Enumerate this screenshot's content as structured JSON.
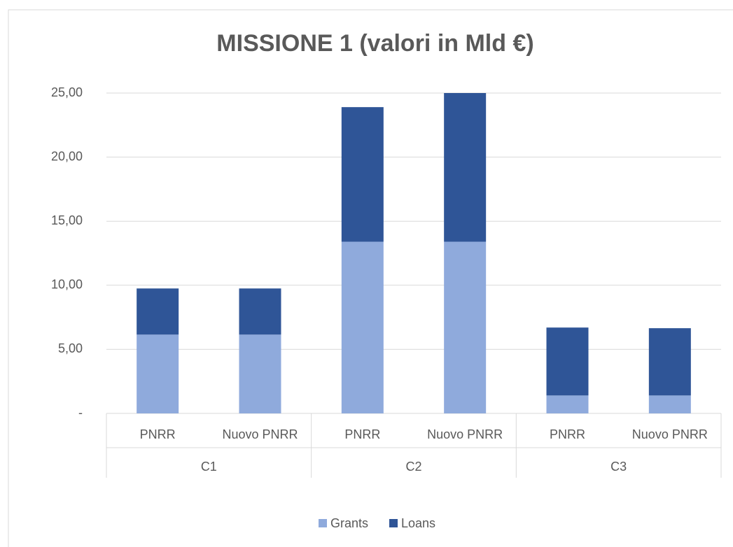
{
  "chart_data": {
    "type": "stacked_bar",
    "title": "MISSIONE 1 (valori in Mld €)",
    "categories": [
      "PNRR",
      "Nuovo PNRR",
      "PNRR",
      "Nuovo PNRR",
      "PNRR",
      "Nuovo PNRR"
    ],
    "groups": [
      "C1",
      "C2",
      "C3"
    ],
    "series": [
      {
        "name": "Grants",
        "color": "#8faadc",
        "values": [
          6.15,
          6.15,
          13.4,
          13.4,
          1.4,
          1.4
        ]
      },
      {
        "name": "Loans",
        "color": "#2f5597",
        "values": [
          3.6,
          3.6,
          10.5,
          11.6,
          5.3,
          5.25
        ]
      }
    ],
    "ylim": [
      0,
      25
    ],
    "yticks": [
      {
        "value": 0,
        "label": "-"
      },
      {
        "value": 5,
        "label": "5,00"
      },
      {
        "value": 10,
        "label": "10,00"
      },
      {
        "value": 15,
        "label": "15,00"
      },
      {
        "value": 20,
        "label": "20,00"
      },
      {
        "value": 25,
        "label": "25,00"
      }
    ],
    "grid": true,
    "legend": "bottom"
  }
}
